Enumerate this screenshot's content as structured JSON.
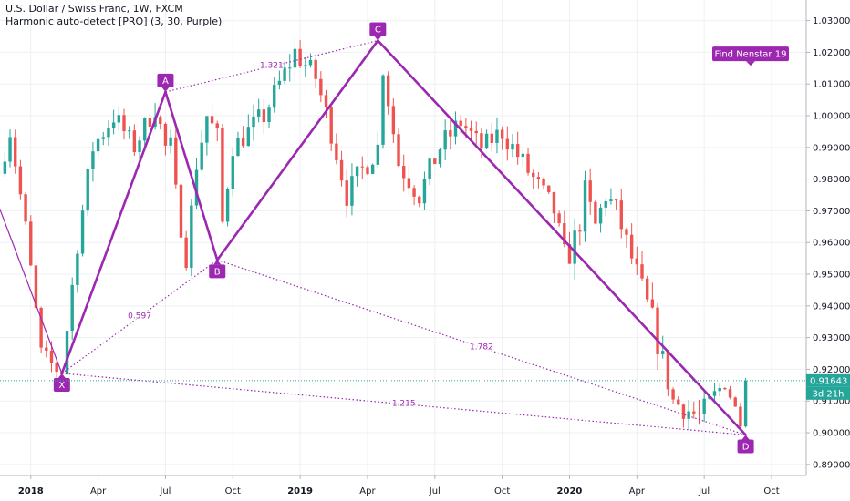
{
  "header": {
    "title": "U.S. Dollar / Swiss Franc, 1W, FXCM",
    "indicator": "Harmonic auto-detect [PRO] (3, 30, Purple)"
  },
  "colors": {
    "up": "#26a69a",
    "down": "#ef5350",
    "pattern": "#9c27b0",
    "grid": "#eef0f3",
    "axis": "#b2b5be",
    "price_tag": "#26a69a"
  },
  "price_tag": {
    "price": "0.91643",
    "countdown": "3d 21h"
  },
  "annotation": {
    "label": "Find Nenstar 19",
    "price": 1.0195
  },
  "chart_data": {
    "type": "candlestick",
    "symbol": "USDCHF",
    "interval": "1W",
    "y_ticks": [
      "0.89000",
      "0.90000",
      "0.91000",
      "0.92000",
      "0.93000",
      "0.94000",
      "0.95000",
      "0.96000",
      "0.97000",
      "0.98000",
      "0.99000",
      "1.00000",
      "1.01000",
      "1.02000",
      "1.03000"
    ],
    "x_ticks": [
      "2018",
      "Apr",
      "Jul",
      "Oct",
      "2019",
      "Apr",
      "Jul",
      "Oct",
      "2020",
      "Apr",
      "Jul",
      "Oct"
    ],
    "ylim": [
      0.8865,
      1.0365
    ],
    "last_price": 0.91643,
    "pattern": {
      "name": "Harmonic auto-detect",
      "points": [
        {
          "label": "X",
          "price": 0.9187
        },
        {
          "label": "A",
          "price": 1.0075
        },
        {
          "label": "B",
          "price": 0.9545
        },
        {
          "label": "C",
          "price": 1.0237
        },
        {
          "label": "D",
          "price": 0.8993
        }
      ],
      "ratios": [
        {
          "label": "0.597",
          "between": "X-B"
        },
        {
          "label": "1.321",
          "between": "A-C"
        },
        {
          "label": "1.782",
          "between": "B-D"
        },
        {
          "label": "1.215",
          "between": "X-D"
        }
      ]
    },
    "anchors": [
      {
        "p": 0.975,
        "s": 0.0025
      },
      {
        "p": 0.995,
        "s": 0.003
      },
      {
        "p": 0.965,
        "s": 0.0025
      },
      {
        "p": 0.925,
        "s": 0.003
      },
      {
        "p": 0.92,
        "s": 0.003
      },
      {
        "p": 0.96,
        "s": 0.004
      },
      {
        "p": 0.99,
        "s": 0.004
      },
      {
        "p": 1.0,
        "s": 0.004
      },
      {
        "p": 0.99,
        "s": 0.003
      },
      {
        "p": 1.003,
        "s": 0.004
      },
      {
        "p": 0.99,
        "s": 0.003
      },
      {
        "p": 0.975,
        "s": 0.004
      },
      {
        "p": 0.955,
        "s": 0.003
      },
      {
        "p": 0.985,
        "s": 0.004
      },
      {
        "p": 1.0,
        "s": 0.004
      },
      {
        "p": 0.993,
        "s": 0.004
      },
      {
        "p": 0.99,
        "s": 0.003
      },
      {
        "p": 0.995,
        "s": 0.004
      },
      {
        "p": 1.0,
        "s": 0.004
      },
      {
        "p": 1.01,
        "s": 0.004
      },
      {
        "p": 1.02,
        "s": 0.004
      },
      {
        "p": 1.012,
        "s": 0.004
      },
      {
        "p": 0.995,
        "s": 0.004
      },
      {
        "p": 0.975,
        "s": 0.004
      },
      {
        "p": 0.983,
        "s": 0.004
      },
      {
        "p": 0.99,
        "s": 0.004
      },
      {
        "p": 0.985,
        "s": 0.004
      },
      {
        "p": 0.975,
        "s": 0.004
      },
      {
        "p": 0.99,
        "s": 0.004
      },
      {
        "p": 0.998,
        "s": 0.004
      },
      {
        "p": 0.99,
        "s": 0.003
      },
      {
        "p": 0.995,
        "s": 0.004
      },
      {
        "p": 0.985,
        "s": 0.004
      },
      {
        "p": 0.975,
        "s": 0.004
      },
      {
        "p": 0.97,
        "s": 0.004
      },
      {
        "p": 0.955,
        "s": 0.005
      },
      {
        "p": 0.96,
        "s": 0.006
      },
      {
        "p": 0.975,
        "s": 0.005
      },
      {
        "p": 0.965,
        "s": 0.005
      },
      {
        "p": 0.975,
        "s": 0.004
      },
      {
        "p": 0.97,
        "s": 0.004
      },
      {
        "p": 0.955,
        "s": 0.004
      },
      {
        "p": 0.935,
        "s": 0.005
      },
      {
        "p": 0.91,
        "s": 0.004
      },
      {
        "p": 0.905,
        "s": 0.004
      },
      {
        "p": 0.916,
        "s": 0.003
      }
    ]
  }
}
